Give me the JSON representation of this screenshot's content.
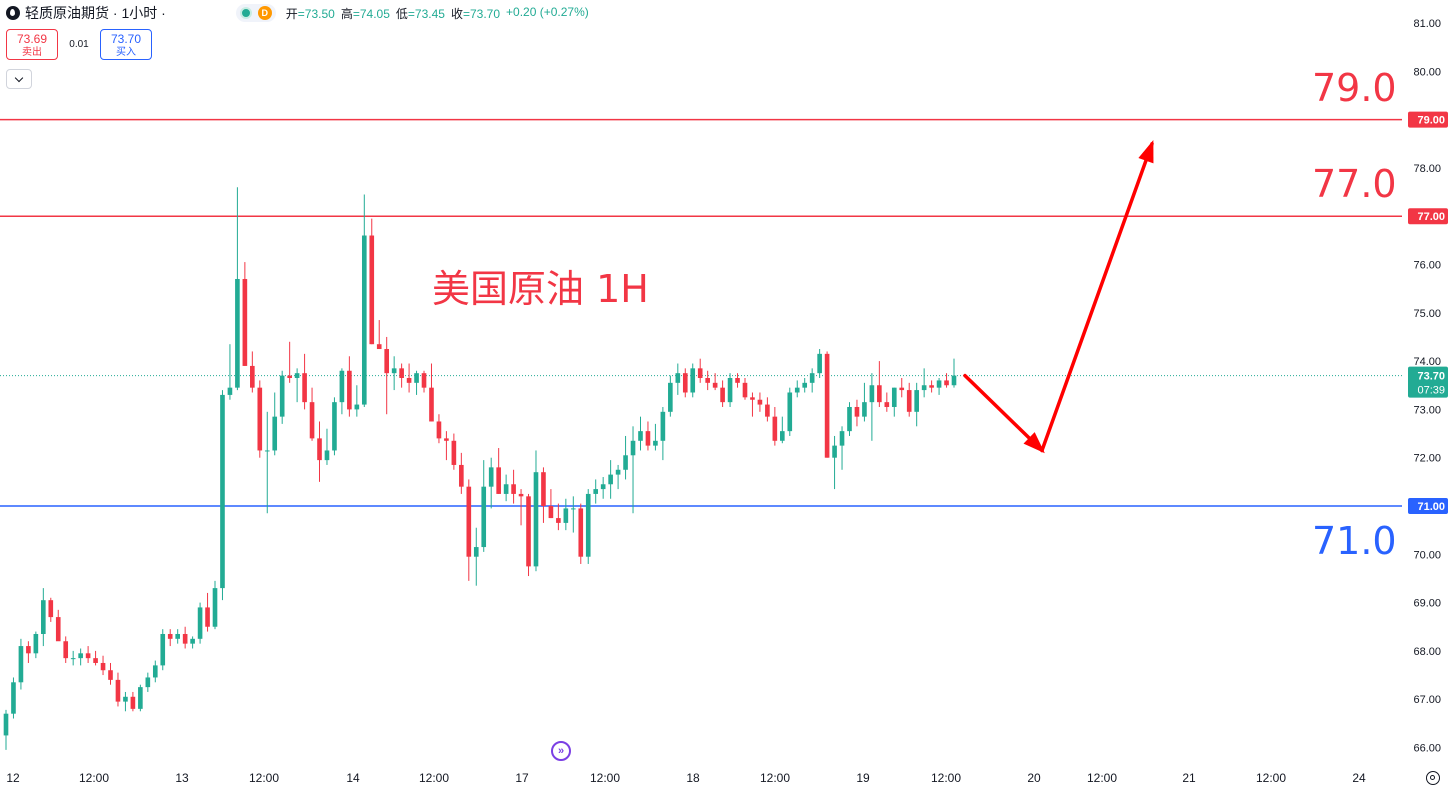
{
  "header": {
    "title": "轻质原油期货 · 1小时 ·",
    "interval_badge": "D",
    "ohlc": {
      "open_label": "开",
      "open": "=73.50",
      "high_label": "高",
      "high": "=74.05",
      "low_label": "低",
      "low": "=73.45",
      "close_label": "收",
      "close": "=73.70",
      "change": "+0.20 (+0.27%)"
    }
  },
  "trade": {
    "sell_price": "73.69",
    "sell_label": "卖出",
    "spread": "0.01",
    "buy_price": "73.70",
    "buy_label": "买入"
  },
  "annotation": "美国原油 1H",
  "levels": [
    {
      "value": 79.0,
      "label": "79.0",
      "axis_label": "79.00",
      "color": "#f23645"
    },
    {
      "value": 77.0,
      "label": "77.0",
      "axis_label": "77.00",
      "color": "#f23645"
    },
    {
      "value": 71.0,
      "label": "71.0",
      "axis_label": "71.00",
      "color": "#2962ff"
    }
  ],
  "current": {
    "price": 73.7,
    "label": "73.70",
    "countdown": "07:39"
  },
  "colors": {
    "up": "#22ab94",
    "down": "#f23645",
    "arrow": "#ff0000"
  },
  "chart_data": {
    "type": "candlestick",
    "y_axis": {
      "range": [
        65.8,
        81.3
      ],
      "ticks": [
        "81.00",
        "80.00",
        "79.00",
        "78.00",
        "77.00",
        "76.00",
        "75.00",
        "74.00",
        "73.00",
        "72.00",
        "71.00",
        "70.00",
        "69.00",
        "68.00",
        "67.00",
        "66.00"
      ]
    },
    "x_axis": {
      "ticks": [
        "12",
        "12:00",
        "13",
        "12:00",
        "14",
        "12:00",
        "17",
        "12:00",
        "18",
        "12:00",
        "19",
        "12:00",
        "20",
        "12:00",
        "21",
        "12:00",
        "24"
      ]
    },
    "projection_path": [
      [
        73.7,
        73.75
      ],
      [
        72.15,
        72.15
      ],
      [
        78.5,
        78.5
      ]
    ],
    "candles": [
      [
        66.25,
        66.78,
        65.95,
        66.7
      ],
      [
        66.7,
        67.45,
        66.6,
        67.35
      ],
      [
        67.35,
        68.25,
        67.2,
        68.1
      ],
      [
        68.1,
        68.2,
        67.75,
        67.95
      ],
      [
        67.95,
        68.4,
        67.85,
        68.35
      ],
      [
        68.35,
        69.3,
        68.1,
        69.05
      ],
      [
        69.05,
        69.1,
        68.6,
        68.7
      ],
      [
        68.7,
        68.85,
        68.25,
        68.2
      ],
      [
        68.2,
        68.3,
        67.75,
        67.85
      ],
      [
        67.85,
        68.0,
        67.7,
        67.85
      ],
      [
        67.85,
        68.05,
        67.7,
        67.95
      ],
      [
        67.95,
        68.1,
        67.75,
        67.85
      ],
      [
        67.85,
        68.0,
        67.7,
        67.75
      ],
      [
        67.75,
        67.9,
        67.5,
        67.6
      ],
      [
        67.6,
        67.75,
        67.3,
        67.4
      ],
      [
        67.4,
        67.55,
        66.85,
        66.95
      ],
      [
        66.95,
        67.15,
        66.75,
        67.05
      ],
      [
        67.05,
        67.15,
        66.75,
        66.8
      ],
      [
        66.8,
        67.3,
        66.75,
        67.25
      ],
      [
        67.25,
        67.55,
        67.15,
        67.45
      ],
      [
        67.45,
        67.8,
        67.35,
        67.7
      ],
      [
        67.7,
        68.45,
        67.6,
        68.35
      ],
      [
        68.35,
        68.45,
        68.1,
        68.25
      ],
      [
        68.25,
        68.45,
        68.15,
        68.35
      ],
      [
        68.35,
        68.5,
        68.05,
        68.15
      ],
      [
        68.15,
        68.3,
        68.05,
        68.25
      ],
      [
        68.25,
        69.0,
        68.15,
        68.9
      ],
      [
        68.9,
        69.2,
        68.4,
        68.5
      ],
      [
        68.5,
        69.45,
        68.45,
        69.3
      ],
      [
        69.3,
        73.4,
        69.05,
        73.3
      ],
      [
        73.3,
        74.35,
        73.2,
        73.45
      ],
      [
        73.45,
        77.6,
        73.4,
        75.7
      ],
      [
        75.7,
        76.05,
        73.9,
        73.9
      ],
      [
        73.9,
        74.2,
        73.35,
        73.45
      ],
      [
        73.45,
        73.6,
        72.0,
        72.15
      ],
      [
        72.15,
        72.95,
        70.85,
        72.15
      ],
      [
        72.15,
        73.35,
        72.05,
        72.85
      ],
      [
        72.85,
        73.8,
        72.7,
        73.7
      ],
      [
        73.7,
        74.4,
        73.55,
        73.65
      ],
      [
        73.65,
        73.85,
        73.15,
        73.75
      ],
      [
        73.75,
        74.15,
        73.0,
        73.15
      ],
      [
        73.15,
        73.45,
        72.35,
        72.4
      ],
      [
        72.4,
        72.75,
        71.5,
        71.95
      ],
      [
        71.95,
        72.6,
        71.85,
        72.15
      ],
      [
        72.15,
        73.25,
        72.05,
        73.15
      ],
      [
        73.15,
        73.85,
        72.9,
        73.8
      ],
      [
        73.8,
        74.1,
        72.85,
        73.0
      ],
      [
        73.0,
        73.5,
        72.85,
        73.1
      ],
      [
        73.1,
        77.45,
        73.05,
        76.6
      ],
      [
        76.6,
        76.95,
        74.35,
        74.35
      ],
      [
        74.35,
        74.85,
        74.25,
        74.25
      ],
      [
        74.25,
        74.5,
        72.9,
        73.75
      ],
      [
        73.75,
        74.1,
        73.4,
        73.85
      ],
      [
        73.85,
        73.95,
        73.45,
        73.65
      ],
      [
        73.65,
        73.95,
        73.35,
        73.55
      ],
      [
        73.55,
        73.8,
        73.3,
        73.75
      ],
      [
        73.75,
        73.8,
        73.35,
        73.45
      ],
      [
        73.45,
        73.95,
        72.75,
        72.75
      ],
      [
        72.75,
        72.9,
        72.3,
        72.4
      ],
      [
        72.4,
        72.55,
        71.95,
        72.35
      ],
      [
        72.35,
        72.5,
        71.75,
        71.85
      ],
      [
        71.85,
        72.1,
        71.25,
        71.4
      ],
      [
        71.4,
        71.55,
        69.45,
        69.95
      ],
      [
        69.95,
        70.55,
        69.35,
        70.15
      ],
      [
        70.15,
        71.95,
        70.05,
        71.4
      ],
      [
        71.4,
        72.0,
        70.95,
        71.8
      ],
      [
        71.8,
        72.2,
        71.25,
        71.25
      ],
      [
        71.25,
        71.65,
        71.1,
        71.45
      ],
      [
        71.45,
        71.75,
        71.05,
        71.25
      ],
      [
        71.25,
        71.35,
        70.6,
        71.2
      ],
      [
        71.2,
        71.25,
        69.55,
        69.75
      ],
      [
        69.75,
        72.15,
        69.65,
        71.7
      ],
      [
        71.7,
        71.8,
        70.65,
        71.0
      ],
      [
        71.0,
        71.35,
        70.75,
        70.75
      ],
      [
        70.75,
        71.05,
        70.5,
        70.65
      ],
      [
        70.65,
        71.15,
        70.5,
        70.95
      ],
      [
        70.95,
        71.2,
        70.45,
        70.95
      ],
      [
        70.95,
        71.05,
        69.8,
        69.95
      ],
      [
        69.95,
        71.35,
        69.8,
        71.25
      ],
      [
        71.25,
        71.55,
        71.05,
        71.35
      ],
      [
        71.35,
        71.6,
        71.15,
        71.45
      ],
      [
        71.45,
        71.95,
        71.15,
        71.65
      ],
      [
        71.65,
        71.85,
        71.35,
        71.75
      ],
      [
        71.75,
        72.45,
        71.55,
        72.05
      ],
      [
        72.05,
        72.65,
        70.85,
        72.35
      ],
      [
        72.35,
        72.85,
        72.15,
        72.55
      ],
      [
        72.55,
        72.75,
        72.15,
        72.25
      ],
      [
        72.25,
        72.7,
        72.15,
        72.35
      ],
      [
        72.35,
        73.05,
        71.95,
        72.95
      ],
      [
        72.95,
        73.7,
        72.85,
        73.55
      ],
      [
        73.55,
        73.95,
        73.3,
        73.75
      ],
      [
        73.75,
        73.85,
        73.25,
        73.35
      ],
      [
        73.35,
        73.95,
        73.25,
        73.85
      ],
      [
        73.85,
        74.05,
        73.55,
        73.65
      ],
      [
        73.65,
        73.8,
        73.4,
        73.55
      ],
      [
        73.55,
        73.75,
        73.4,
        73.45
      ],
      [
        73.45,
        73.6,
        73.05,
        73.15
      ],
      [
        73.15,
        73.75,
        73.05,
        73.65
      ],
      [
        73.65,
        73.75,
        73.45,
        73.55
      ],
      [
        73.55,
        73.65,
        73.2,
        73.25
      ],
      [
        73.25,
        73.35,
        72.85,
        73.2
      ],
      [
        73.2,
        73.35,
        72.95,
        73.1
      ],
      [
        73.1,
        73.25,
        72.75,
        72.85
      ],
      [
        72.85,
        73.05,
        72.25,
        72.35
      ],
      [
        72.35,
        72.85,
        72.3,
        72.55
      ],
      [
        72.55,
        73.45,
        72.45,
        73.35
      ],
      [
        73.35,
        73.6,
        73.25,
        73.45
      ],
      [
        73.45,
        73.65,
        73.35,
        73.55
      ],
      [
        73.55,
        73.85,
        73.35,
        73.75
      ],
      [
        73.75,
        74.25,
        73.65,
        74.15
      ],
      [
        74.15,
        74.2,
        72.0,
        72.0
      ],
      [
        72.0,
        72.45,
        71.35,
        72.25
      ],
      [
        72.25,
        72.65,
        71.75,
        72.55
      ],
      [
        72.55,
        73.15,
        72.45,
        73.05
      ],
      [
        73.05,
        73.2,
        72.65,
        72.85
      ],
      [
        72.85,
        73.55,
        72.75,
        73.15
      ],
      [
        73.15,
        73.75,
        72.35,
        73.5
      ],
      [
        73.5,
        74.0,
        73.05,
        73.15
      ],
      [
        73.15,
        73.35,
        72.95,
        73.05
      ],
      [
        73.05,
        73.45,
        72.85,
        73.45
      ],
      [
        73.45,
        73.65,
        73.25,
        73.4
      ],
      [
        73.4,
        73.55,
        72.85,
        72.95
      ],
      [
        72.95,
        73.55,
        72.65,
        73.4
      ],
      [
        73.4,
        73.85,
        73.25,
        73.5
      ],
      [
        73.5,
        73.6,
        73.35,
        73.45
      ],
      [
        73.45,
        73.65,
        73.3,
        73.6
      ],
      [
        73.6,
        73.75,
        73.45,
        73.5
      ],
      [
        73.5,
        74.05,
        73.45,
        73.7
      ]
    ]
  }
}
